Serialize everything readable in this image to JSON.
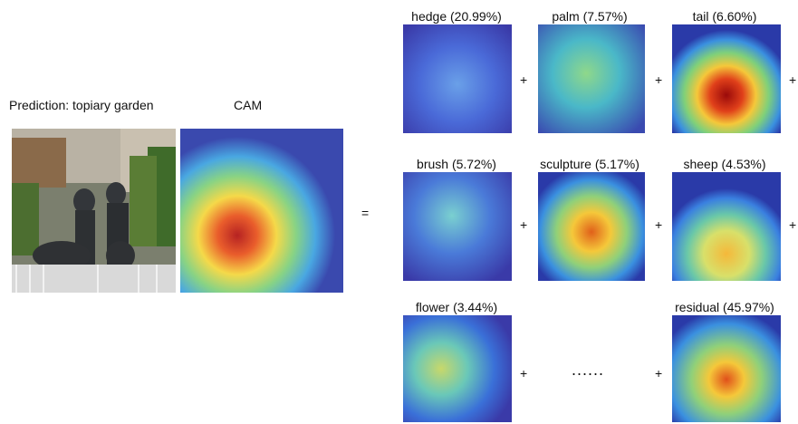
{
  "prediction_label": "Prediction: topiary garden",
  "cam_label": "CAM",
  "equals": "=",
  "plus": "+",
  "ellipsis": "......",
  "components": [
    {
      "name": "hedge (20.99%)",
      "icon": "heatmap-hedge"
    },
    {
      "name": "palm (7.57%)",
      "icon": "heatmap-palm"
    },
    {
      "name": "tail (6.60%)",
      "icon": "heatmap-tail"
    },
    {
      "name": "brush (5.72%)",
      "icon": "heatmap-brush"
    },
    {
      "name": "sculpture (5.17%)",
      "icon": "heatmap-sculpture"
    },
    {
      "name": "sheep (4.53%)",
      "icon": "heatmap-sheep"
    },
    {
      "name": "flower (3.44%)",
      "icon": "heatmap-flower"
    },
    {
      "name": "residual (45.97%)",
      "icon": "heatmap-residual"
    }
  ]
}
